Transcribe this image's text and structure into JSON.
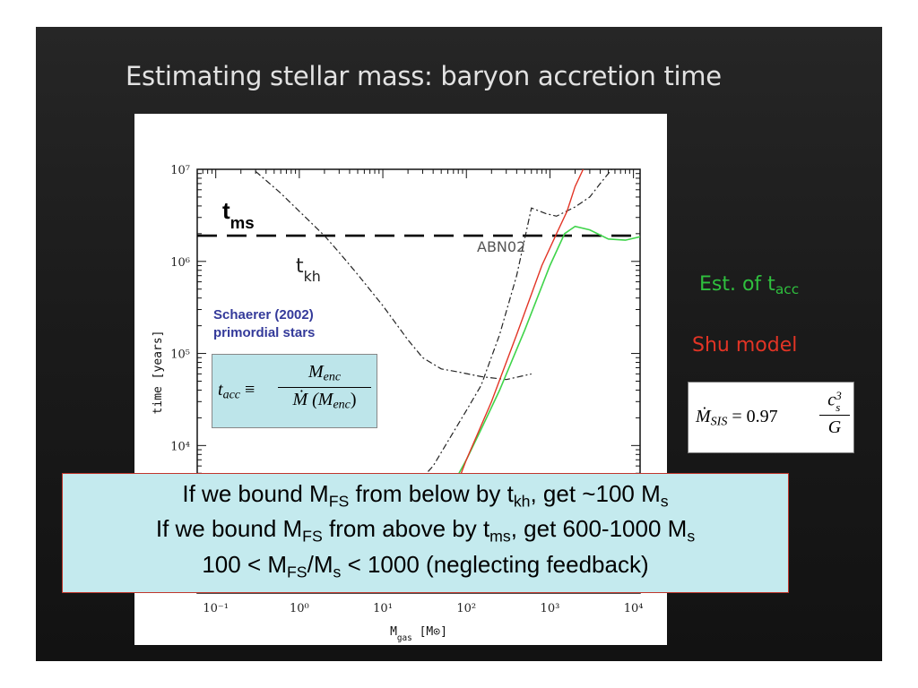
{
  "slide": {
    "title": "Estimating stellar mass: baryon accretion time"
  },
  "legend": {
    "acc_label": "Est. of t",
    "acc_sub": "acc",
    "acc_color": "#2fbf3e",
    "shu_label": "Shu model",
    "shu_color": "#e23425"
  },
  "formula_tacc": {
    "lhs": "t",
    "lhs_sub": "acc",
    "equiv": "≡",
    "num": "M",
    "num_sub": "enc",
    "den": "Ṁ (M",
    "den_sub": "enc",
    "den_close": ")"
  },
  "formula_msis": {
    "lhs": "Ṁ",
    "lhs_sub": "SIS",
    "eq": "= 0.97",
    "num": "c",
    "num_sub": "s",
    "num_sup": "3",
    "den": "G"
  },
  "callout": {
    "line1": {
      "a": "If we bound M",
      "a_sub": "FS",
      "b": " from below by t",
      "b_sub": "kh",
      "c": ", get ~100 M",
      "c_sub": "s"
    },
    "line2": {
      "a": "If we bound M",
      "a_sub": "FS",
      "b": " from above by t",
      "b_sub": "ms",
      "c": ", get 600-1000 M",
      "c_sub": "s"
    },
    "line3": {
      "a": "100 < M",
      "a_sub": "FS",
      "b": "/M",
      "b_sub": "s",
      "c": " < 1000 (neglecting feedback)"
    }
  },
  "chart_data": {
    "type": "line",
    "xscale": "log",
    "yscale": "log",
    "xlim": [
      0.06,
      12000
    ],
    "ylim": [
      250,
      10000000
    ],
    "xticks": [
      "10⁻¹",
      "10⁰",
      "10¹",
      "10²",
      "10³",
      "10⁴"
    ],
    "yticks": [
      "10⁷",
      "10⁶",
      "10⁵",
      "10⁴"
    ],
    "ylabel": "time [years]",
    "xlabel": "M",
    "xlabel_sub": "gas",
    "xlabel_unit": "[M⊙]",
    "annotations": {
      "tms": "t",
      "tms_sub": "ms",
      "tkh": "t",
      "tkh_sub": "kh",
      "abn": "ABN02",
      "schaerer_line1": "Schaerer (2002)",
      "schaerer_line2": "primordial stars",
      "schaerer_color": "#343a9a"
    },
    "series": [
      {
        "key": "tms",
        "style": "dashed-black",
        "x": [
          0.06,
          12000
        ],
        "y": [
          1900000,
          1900000
        ]
      },
      {
        "key": "tkh",
        "style": "dashdot-black",
        "x": [
          0.3,
          0.6,
          1,
          2,
          3,
          5,
          10,
          20,
          30,
          50,
          80,
          150,
          300,
          600
        ],
        "y": [
          9500000,
          5500000,
          3500000,
          1900000,
          1250000,
          720000,
          330000,
          140000,
          90000,
          68000,
          63000,
          56000,
          52000,
          60000
        ]
      },
      {
        "key": "abn02",
        "style": "dashdot-black",
        "x": [
          10,
          20,
          40,
          70,
          100,
          150,
          250,
          400,
          600,
          900,
          1200,
          2000,
          3000,
          4000,
          5500
        ],
        "y": [
          1500,
          3000,
          6000,
          14000,
          24000,
          45000,
          160000,
          700000,
          3800000,
          3300000,
          3100000,
          3900000,
          5000000,
          7000000,
          10000000
        ]
      },
      {
        "key": "green",
        "style": "solid-green",
        "x": [
          25,
          40,
          60,
          100,
          150,
          250,
          500,
          1000,
          1500,
          2000,
          3000,
          5000,
          8000,
          12000
        ],
        "y": [
          1000,
          1800,
          3000,
          7000,
          15000,
          40000,
          180000,
          900000,
          2000000,
          2400000,
          2200000,
          1750000,
          1700000,
          1850000
        ]
      },
      {
        "key": "red",
        "style": "solid-red",
        "x": [
          40,
          70,
          100,
          200,
          400,
          800,
          1200,
          1600,
          2000,
          2500
        ],
        "y": [
          800,
          3000,
          7000,
          30000,
          160000,
          900000,
          2000000,
          3500000,
          6500000,
          10000000
        ]
      }
    ]
  }
}
